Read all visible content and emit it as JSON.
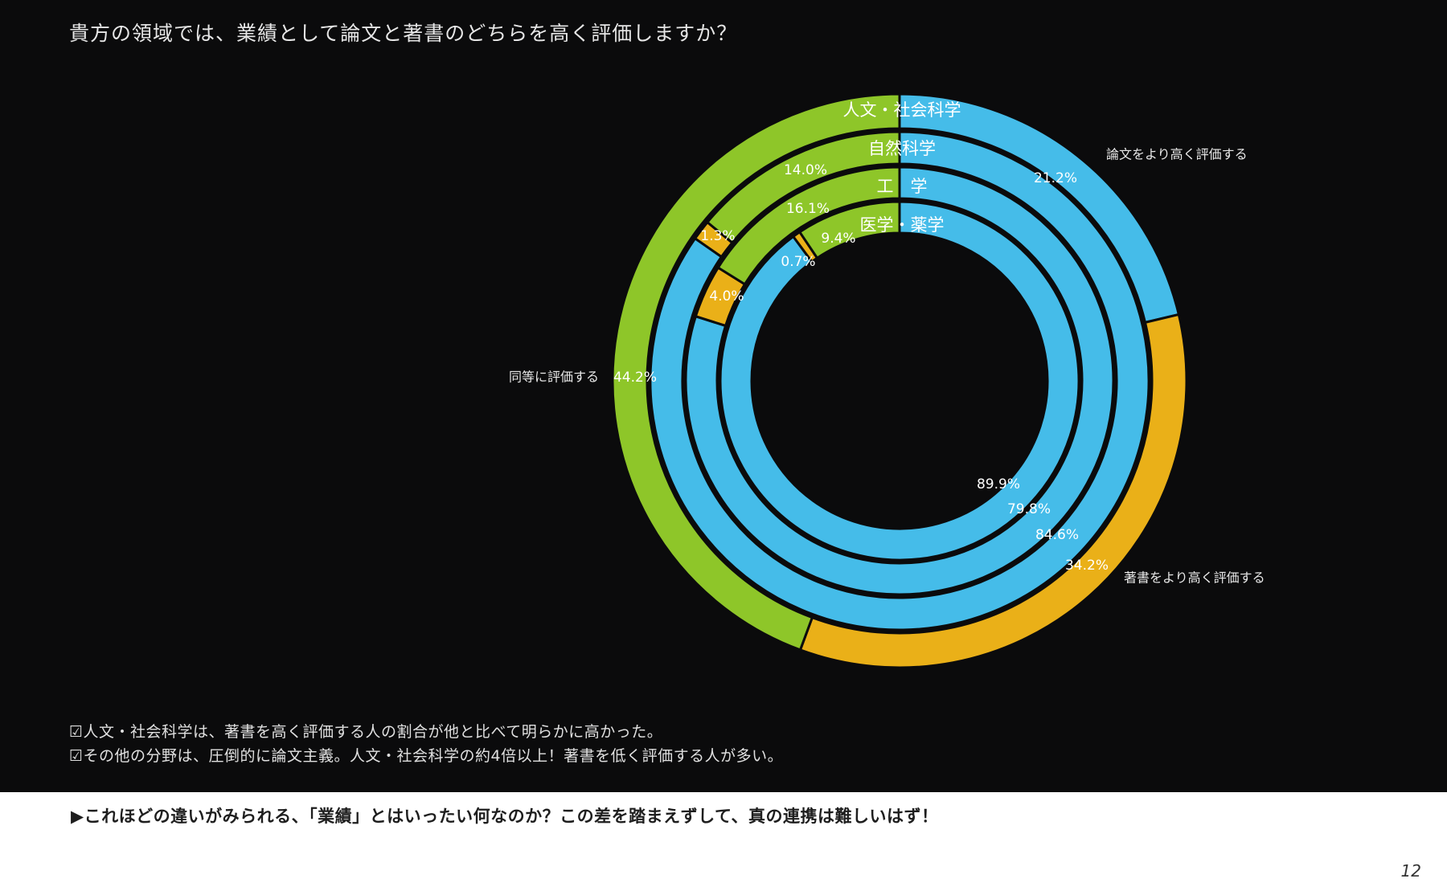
{
  "page": {
    "title": "貴方の領域では、業績として論文と著書のどちらを高く評価しますか？",
    "notes": [
      "☑人文・社会科学は、著書を高く評価する人の割合が他と比べて明らかに高かった。",
      "☑その他の分野は、圧倒的に論文主義。人文・社会科学の約4倍以上！著書を低く評価する人が多い。"
    ],
    "footer": "▶これほどの違いがみられる、「業績」とはいったい何なのか？この差を踏まえずして、真の連携は難しいはず！",
    "page_number": "12"
  },
  "chart_data": {
    "type": "pie",
    "subtype": "multi-ring donut",
    "title": "貴方の領域では、業績として論文と著書のどちらを高く評価しますか？",
    "categories": [
      "論文をより高く評価する",
      "著書をより高く評価する",
      "同等に評価する"
    ],
    "colors": {
      "論文をより高く評価する": "#45bce9",
      "著書をより高く評価する": "#eab018",
      "同等に評価する": "#8ec629"
    },
    "legend_labels": {
      "論文をより高く評価する": "論文をより高く評価する",
      "著書をより高く評価する": "著書をより高く評価する",
      "同等に評価する": "同等に評価する"
    },
    "series": [
      {
        "name": "人文・社会科学",
        "values": [
          21.2,
          34.2,
          44.2
        ],
        "labels": [
          "21.2%",
          "34.2%",
          "44.2%"
        ]
      },
      {
        "name": "自然科学",
        "values": [
          84.6,
          1.3,
          14.0
        ],
        "labels": [
          "84.6%",
          "1.3%",
          "14.0%"
        ]
      },
      {
        "name": "工　学",
        "values": [
          79.8,
          4.0,
          16.1
        ],
        "labels": [
          "79.8%",
          "4.0%",
          "16.1%"
        ]
      },
      {
        "name": "医学・薬学",
        "values": [
          89.9,
          0.7,
          9.4
        ],
        "labels": [
          "89.9%",
          "0.7%",
          "9.4%"
        ]
      }
    ],
    "unit": "%"
  }
}
